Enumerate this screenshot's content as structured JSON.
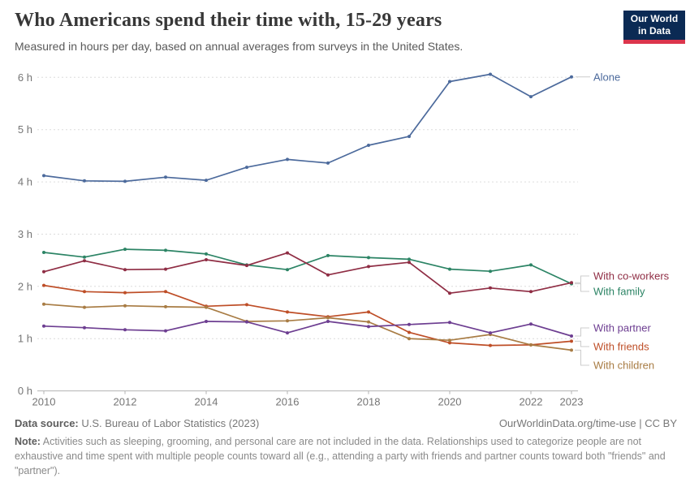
{
  "header": {
    "title": "Who Americans spend their time with, 15-29 years",
    "subtitle": "Measured in hours per day, based on annual averages from surveys in the United States.",
    "logo_line1": "Our World",
    "logo_line2": "in Data"
  },
  "chart_data": {
    "type": "line",
    "title": "Who Americans spend their time with, 15-29 years",
    "xlabel": "",
    "ylabel": "hours per day",
    "x": [
      2010,
      2011,
      2012,
      2013,
      2014,
      2015,
      2016,
      2017,
      2018,
      2019,
      2020,
      2021,
      2022,
      2023
    ],
    "xticks": [
      2010,
      2012,
      2014,
      2016,
      2018,
      2020,
      2022,
      2023
    ],
    "yticks": [
      {
        "value": 0,
        "label": "0 h"
      },
      {
        "value": 1,
        "label": "1 h"
      },
      {
        "value": 2,
        "label": "2 h"
      },
      {
        "value": 3,
        "label": "3 h"
      },
      {
        "value": 4,
        "label": "4 h"
      },
      {
        "value": 5,
        "label": "5 h"
      },
      {
        "value": 6,
        "label": "6 h"
      }
    ],
    "xlim": [
      2010,
      2023
    ],
    "ylim": [
      0,
      6.3
    ],
    "grid": "horizontal-dashed",
    "legend_position": "labels-at-line-ends-right",
    "series": [
      {
        "name": "Alone",
        "color": "#4C6A9C",
        "values": [
          4.12,
          4.02,
          4.01,
          4.09,
          4.03,
          4.28,
          4.43,
          4.36,
          4.7,
          4.87,
          5.92,
          6.06,
          5.63,
          6.01
        ]
      },
      {
        "name": "With family",
        "color": "#2C8465",
        "values": [
          2.65,
          2.56,
          2.71,
          2.69,
          2.62,
          2.41,
          2.32,
          2.59,
          2.55,
          2.52,
          2.33,
          2.29,
          2.41,
          2.05
        ]
      },
      {
        "name": "With co-workers",
        "color": "#8F2D44",
        "values": [
          2.28,
          2.49,
          2.32,
          2.33,
          2.51,
          2.4,
          2.64,
          2.22,
          2.38,
          2.46,
          1.87,
          1.97,
          1.9,
          2.07
        ]
      },
      {
        "name": "With friends",
        "color": "#BE4E27",
        "values": [
          2.02,
          1.9,
          1.88,
          1.9,
          1.62,
          1.65,
          1.51,
          1.42,
          1.51,
          1.12,
          0.92,
          0.87,
          0.88,
          0.95
        ]
      },
      {
        "name": "With children",
        "color": "#A87C44",
        "values": [
          1.66,
          1.6,
          1.63,
          1.61,
          1.6,
          1.33,
          1.34,
          1.4,
          1.32,
          1.0,
          0.97,
          1.08,
          0.88,
          0.78
        ]
      },
      {
        "name": "With partner",
        "color": "#6D3E91",
        "values": [
          1.24,
          1.21,
          1.17,
          1.15,
          1.33,
          1.32,
          1.11,
          1.33,
          1.23,
          1.27,
          1.31,
          1.11,
          1.28,
          1.05
        ]
      }
    ]
  },
  "footer": {
    "source_label": "Data source:",
    "source_text": " U.S. Bureau of Labor Statistics (2023)",
    "link_text": "OurWorldinData.org/time-use | CC BY",
    "note_label": "Note:",
    "note_text": " Activities such as sleeping, grooming, and personal care are not included in the data. Relationships used to categorize people are not exhaustive and time spent with multiple people counts toward all (e.g., attending a party with friends and partner counts toward both \"friends\" and \"partner\")."
  }
}
